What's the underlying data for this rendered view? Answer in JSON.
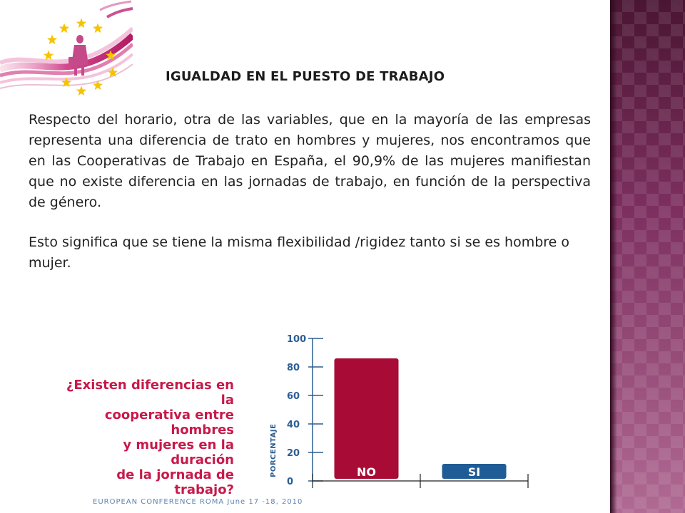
{
  "slide": {
    "heading": "IGUALDAD EN EL PUESTO DE TRABAJO",
    "paragraph_1": "Respecto del horario, otra de las variables, que en la mayoría de las empresas representa una diferencia de trato en hombres y mujeres, nos encontramos que en las Cooperativas de Trabajo en España,  el  90,9% de las mujeres manifiestan que no existe diferencia en las jornadas de trabajo, en función de la perspectiva de género.",
    "paragraph_2": "Esto significa que se tiene la misma flexibilidad /rigidez tanto si se es hombre o mujer.",
    "footer": "EUROPEAN CONFERENCE ROMA June 17 -18, 2010"
  },
  "colors": {
    "accent": "#c7194a",
    "bar_no": "#a80b36",
    "bar_si": "#1f5c95",
    "axis": "#2c5d93",
    "side_panel": "#7c2f5f",
    "footer": "#5e84b3"
  },
  "icons": [
    "eu-stars-woman-logo"
  ],
  "chart_data": {
    "type": "bar",
    "title": "¿Existen diferencias en la cooperativa entre hombres y mujeres en la duración de la jornada de trabajo?",
    "title_lines": [
      "¿Existen diferencias en la",
      "cooperativa entre hombres",
      "y mujeres en la duración",
      "de la jornada de trabajo?"
    ],
    "ylabel": "PORCENTAJE",
    "xlabel": "",
    "ylim": [
      0,
      100
    ],
    "yticks": [
      0,
      20,
      40,
      60,
      80,
      100
    ],
    "categories": [
      "NO",
      "SI"
    ],
    "values": [
      86,
      12
    ],
    "grid": false,
    "legend": "none"
  }
}
